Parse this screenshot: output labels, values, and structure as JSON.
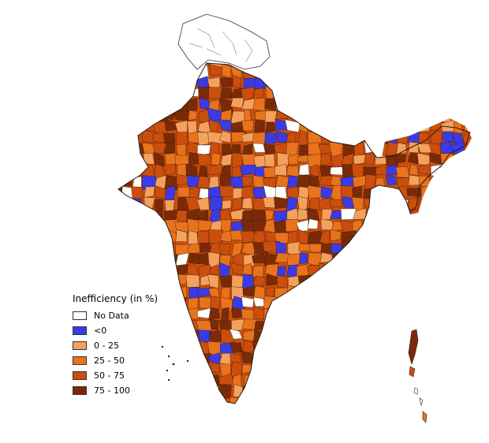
{
  "legend": {
    "title": "Inefficiency (in %)",
    "classes": [
      {
        "label": "No Data",
        "color": "#ffffff"
      },
      {
        "label": "<0",
        "color": "#3a3ae6"
      },
      {
        "label": "0 - 25",
        "color": "#f5a15e"
      },
      {
        "label": "25 - 50",
        "color": "#e8731c"
      },
      {
        "label": "50 - 75",
        "color": "#cc4e0d"
      },
      {
        "label": "75 - 100",
        "color": "#7a2a06"
      }
    ]
  },
  "colors": {
    "border": "#333333",
    "background": "#ffffff"
  }
}
